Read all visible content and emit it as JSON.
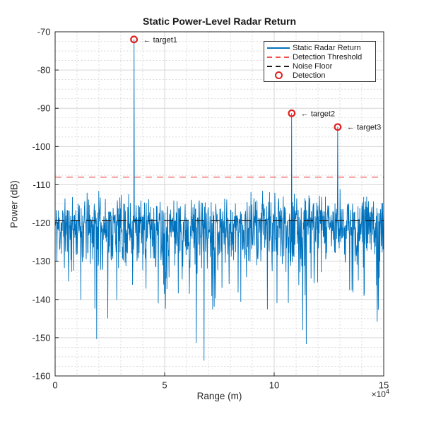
{
  "title": "Static Power-Level Radar Return",
  "axes": {
    "xlabel": "Range (m)",
    "ylabel": "Power (dB)",
    "x_multiplier_base": "×10",
    "x_multiplier_exp": "4",
    "xticks": [
      0,
      5,
      10,
      15
    ],
    "yticks": [
      -70,
      -80,
      -90,
      -100,
      -110,
      -120,
      -130,
      -140,
      -150,
      -160
    ]
  },
  "colors": {
    "signal": "#0072BD",
    "threshold": "#ef5350",
    "noise_floor": "#1a1a1a",
    "detection": "#e01f1f",
    "grid_major": "#d6d6d6",
    "grid_minor": "#d2d2d2",
    "axis": "#262626",
    "tick_text": "#262626",
    "annotation_text": "#1a1a1a"
  },
  "legend": {
    "items": [
      {
        "label": "Static Radar Return",
        "style": "solid",
        "color": "#0072BD"
      },
      {
        "label": "Detection Threshold",
        "style": "dashed",
        "color": "#ef5350"
      },
      {
        "label": "Noise Floor",
        "style": "dashed",
        "color": "#1a1a1a"
      },
      {
        "label": "Detection",
        "style": "circle",
        "color": "#e01f1f"
      }
    ]
  },
  "annotations": [
    {
      "text": "← target1"
    },
    {
      "text": "← target2"
    },
    {
      "text": "← target3"
    }
  ],
  "chart_data": {
    "type": "line",
    "title": "Static Power-Level Radar Return",
    "xlabel": "Range (m)",
    "ylabel": "Power (dB)",
    "xlim": [
      0,
      150000
    ],
    "ylim": [
      -160,
      -70
    ],
    "x_tick_multiplier": 10000,
    "grid": "on",
    "minor_grid": "on",
    "legend_position": "northeast",
    "series": [
      {
        "name": "Static Radar Return",
        "style": "solid",
        "color": "#0072BD",
        "description": "dense exponential-power noise about the noise floor with three target spikes"
      },
      {
        "name": "Detection Threshold",
        "style": "dashed",
        "color": "#ef5350",
        "constant_dB": -108
      },
      {
        "name": "Noise Floor",
        "style": "dashed",
        "color": "#1a1a1a",
        "constant_dB": -119.4
      }
    ],
    "detections": [
      {
        "label": "target1",
        "range_m": 36000,
        "power_dB": -72.0
      },
      {
        "label": "target2",
        "range_m": 108000,
        "power_dB": -91.3
      },
      {
        "label": "target3",
        "range_m": 129000,
        "power_dB": -94.9
      }
    ],
    "detection_threshold_dB": -108,
    "noise_floor_dB": -119.4,
    "noise": {
      "distribution": "exponential-power",
      "n_points": 1100,
      "typical_band_dB": [
        -131,
        -112
      ],
      "seed": 11
    },
    "notable_nulls": [
      {
        "range_m": 68000,
        "power_dB": -156
      },
      {
        "range_m": 113000,
        "power_dB": -148
      }
    ]
  }
}
